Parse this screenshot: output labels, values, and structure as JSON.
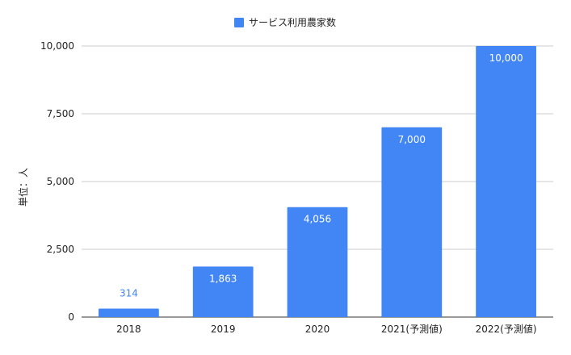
{
  "chart_data": {
    "type": "bar",
    "categories": [
      "2018",
      "2019",
      "2020",
      "2021(予測値)",
      "2022(予測値)"
    ],
    "series": [
      {
        "name": "サービス利用農家数",
        "values": [
          314,
          1863,
          4056,
          7000,
          10000
        ]
      }
    ],
    "data_labels": [
      "314",
      "1,863",
      "4,056",
      "7,000",
      "10,000"
    ],
    "ylabel": "単位：人",
    "ylim": [
      0,
      10000
    ],
    "yticks": [
      0,
      2500,
      5000,
      7500,
      10000
    ],
    "ytick_labels": [
      "0",
      "2,500",
      "5,000",
      "7,500",
      "10,000"
    ],
    "legend_position": "top",
    "grid": true,
    "colors": {
      "bar": "#4285f4",
      "grid": "#cccccc",
      "axis": "#333333",
      "label_outside": "#4285f4",
      "label_inside": "#ffffff"
    }
  }
}
